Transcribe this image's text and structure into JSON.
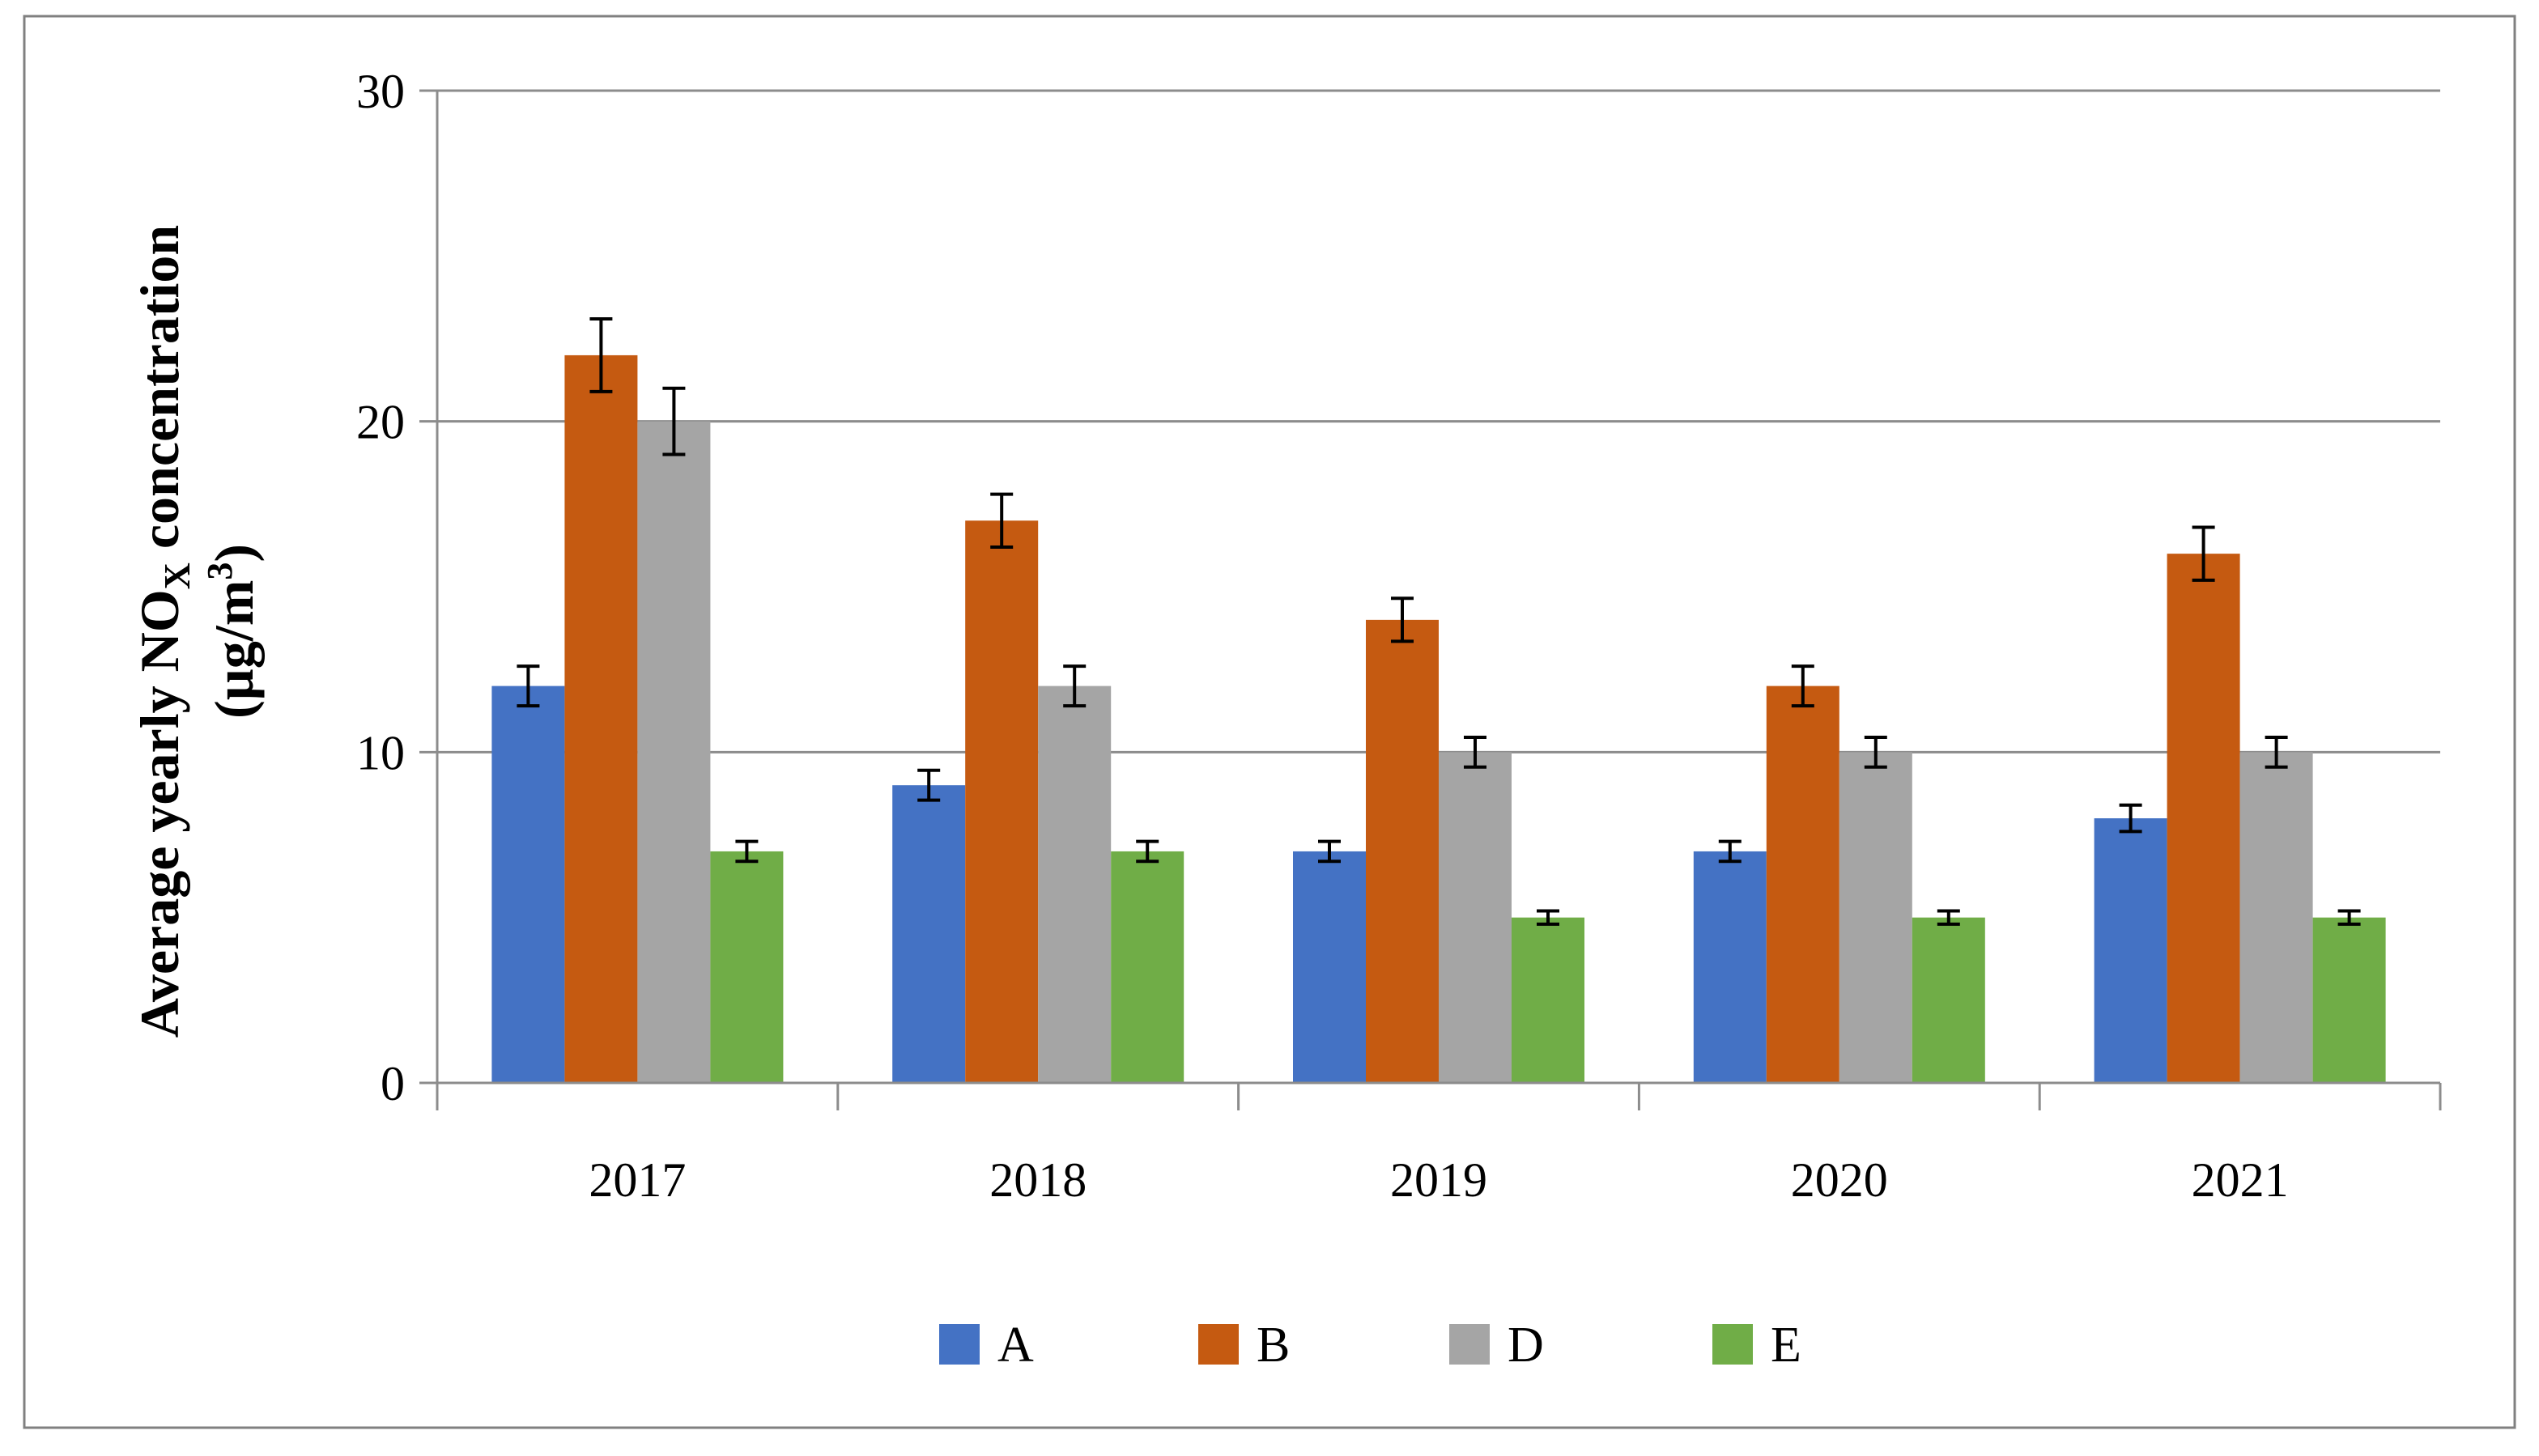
{
  "chart_data": {
    "type": "bar",
    "title": "",
    "xlabel": "",
    "ylabel": {
      "line1_pre": "Average yearly NO",
      "line1_sub": "X",
      "line1_post": " concentration",
      "line2_pre": "(µg/m",
      "line2_sup": "3",
      "line2_post": ")"
    },
    "ylim": [
      0,
      30
    ],
    "yticks": [
      0,
      10,
      20,
      30
    ],
    "grid": true,
    "legend_position": "bottom",
    "categories": [
      "2017",
      "2018",
      "2019",
      "2020",
      "2021"
    ],
    "series": [
      {
        "name": "A",
        "color": "#4472C4",
        "values": [
          12,
          9,
          7,
          7,
          8
        ],
        "errors": [
          0.6,
          0.45,
          0.3,
          0.3,
          0.4
        ]
      },
      {
        "name": "B",
        "color": "#C55A11",
        "values": [
          22,
          17,
          14,
          12,
          16
        ],
        "errors": [
          1.1,
          0.8,
          0.65,
          0.6,
          0.8
        ]
      },
      {
        "name": "D",
        "color": "#A5A5A5",
        "values": [
          20,
          12,
          10,
          10,
          10
        ],
        "errors": [
          1.0,
          0.6,
          0.45,
          0.45,
          0.45
        ]
      },
      {
        "name": "E",
        "color": "#70AD47",
        "values": [
          7,
          7,
          5,
          5,
          5
        ],
        "errors": [
          0.3,
          0.3,
          0.2,
          0.2,
          0.2
        ]
      }
    ]
  }
}
